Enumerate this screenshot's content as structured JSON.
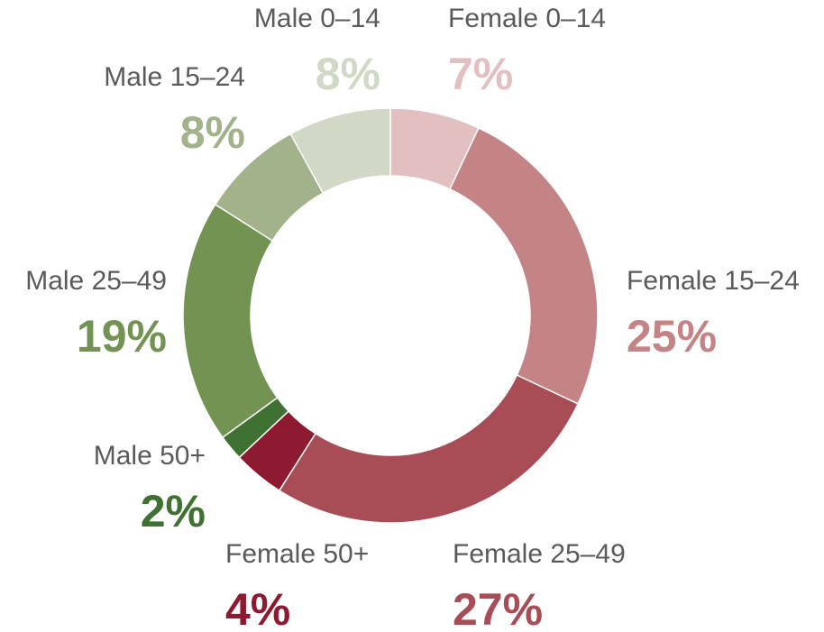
{
  "chart_data": {
    "type": "donut",
    "categories": [
      "Female 0–14",
      "Female 15–24",
      "Female 25–49",
      "Female 50+",
      "Male 50+",
      "Male 25–49",
      "Male 15–24",
      "Male 0–14"
    ],
    "values": [
      7,
      25,
      27,
      4,
      2,
      19,
      8,
      8
    ],
    "value_labels": [
      "7%",
      "25%",
      "27%",
      "4%",
      "2%",
      "19%",
      "8%",
      "8%"
    ],
    "colors": [
      "#e2bfc0",
      "#c48384",
      "#a84c56",
      "#8e1a31",
      "#3f7232",
      "#739353",
      "#a2b28b",
      "#d2d8c6"
    ]
  }
}
